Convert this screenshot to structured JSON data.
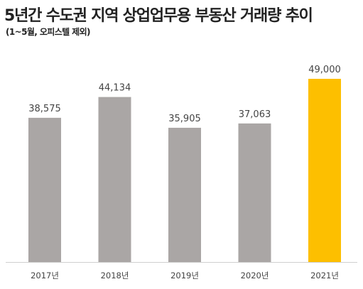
{
  "chart_data": {
    "type": "bar",
    "title": "5년간 수도권 지역 상업업무용 부동산 거래량 추이",
    "subtitle": "(1~5월, 오피스텔 제외)",
    "xlabel": "",
    "ylabel": "",
    "categories": [
      "2017년",
      "2018년",
      "2019년",
      "2020년",
      "2021년"
    ],
    "values": [
      38575,
      44134,
      35905,
      37063,
      49000
    ],
    "value_labels": [
      "38,575",
      "44,134",
      "35,905",
      "37,063",
      "49,000"
    ],
    "ylim": [
      0,
      49000
    ],
    "grid": false,
    "legend": "none",
    "colors": {
      "default_bar": "#aaa6a5",
      "highlight_bar": "#fdbf00",
      "axis_line": "#cfcfcf"
    },
    "highlight_index": 4
  }
}
